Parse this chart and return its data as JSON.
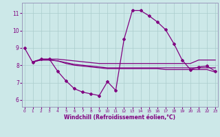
{
  "xlabel": "Windchill (Refroidissement éolien,°C)",
  "bg_color": "#cce8e8",
  "line_color": "#800080",
  "grid_color": "#aacccc",
  "spine_color": "#9999bb",
  "x_ticks": [
    0,
    1,
    2,
    3,
    4,
    5,
    6,
    7,
    8,
    9,
    10,
    11,
    12,
    13,
    14,
    15,
    16,
    17,
    18,
    19,
    20,
    21,
    22,
    23
  ],
  "y_ticks": [
    6,
    7,
    8,
    9,
    10,
    11
  ],
  "ylim": [
    5.6,
    11.6
  ],
  "xlim": [
    -0.3,
    23.3
  ],
  "series": {
    "line1_x": [
      0,
      1,
      2,
      3,
      4,
      5,
      6,
      7,
      8,
      9,
      10,
      11,
      12,
      13,
      14,
      15,
      16,
      17,
      18,
      19,
      20,
      21,
      22,
      23
    ],
    "line1_y": [
      9.0,
      8.15,
      8.35,
      8.35,
      7.65,
      7.1,
      6.65,
      6.45,
      6.35,
      6.25,
      7.05,
      6.55,
      9.5,
      11.15,
      11.15,
      10.85,
      10.5,
      10.05,
      9.25,
      8.3,
      7.75,
      7.9,
      7.95,
      7.65
    ],
    "line2_x": [
      1,
      2,
      3,
      4,
      5,
      6,
      7,
      8,
      9,
      10,
      11,
      12,
      13,
      14,
      15,
      16,
      17,
      18,
      19,
      20,
      21,
      22,
      23
    ],
    "line2_y": [
      8.2,
      8.35,
      8.35,
      8.35,
      8.3,
      8.25,
      8.2,
      8.15,
      8.1,
      8.1,
      8.1,
      8.1,
      8.1,
      8.1,
      8.1,
      8.1,
      8.1,
      8.1,
      8.1,
      8.1,
      8.3,
      8.3,
      8.3
    ],
    "line3_x": [
      1,
      2,
      3,
      4,
      5,
      6,
      7,
      8,
      9,
      10,
      11,
      12,
      13,
      14,
      15,
      16,
      17,
      18,
      19,
      20,
      21,
      22,
      23
    ],
    "line3_y": [
      8.2,
      8.3,
      8.3,
      8.25,
      8.15,
      8.05,
      8.0,
      7.95,
      7.9,
      7.85,
      7.85,
      7.85,
      7.85,
      7.85,
      7.85,
      7.85,
      7.85,
      7.85,
      7.85,
      7.85,
      7.85,
      7.85,
      7.85
    ],
    "line4_x": [
      1,
      2,
      3,
      4,
      5,
      6,
      7,
      8,
      9,
      10,
      11,
      12,
      13,
      14,
      15,
      16,
      17,
      18,
      19,
      20,
      21,
      22,
      23
    ],
    "line4_y": [
      8.2,
      8.3,
      8.3,
      8.25,
      8.1,
      8.0,
      7.95,
      7.9,
      7.85,
      7.8,
      7.8,
      7.8,
      7.8,
      7.8,
      7.8,
      7.8,
      7.75,
      7.75,
      7.75,
      7.75,
      7.75,
      7.75,
      7.6
    ]
  }
}
